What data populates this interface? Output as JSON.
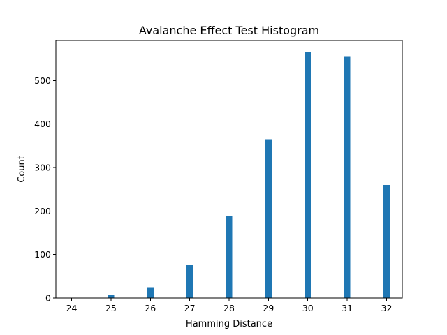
{
  "chart_data": {
    "type": "bar",
    "title": "Avalanche Effect Test Histogram",
    "xlabel": "Hamming Distance",
    "ylabel": "Count",
    "x": [
      24,
      25,
      26,
      27,
      28,
      29,
      30,
      31,
      32
    ],
    "values": [
      1,
      8,
      25,
      76,
      188,
      365,
      565,
      556,
      260
    ],
    "xlim": [
      23.6,
      32.4
    ],
    "ylim": [
      0,
      592
    ],
    "xticks": [
      24,
      25,
      26,
      27,
      28,
      29,
      30,
      31,
      32
    ],
    "yticks": [
      0,
      100,
      200,
      300,
      400,
      500
    ],
    "bar_width": 0.16,
    "bar_color": "#1f77b4",
    "grid": false
  }
}
